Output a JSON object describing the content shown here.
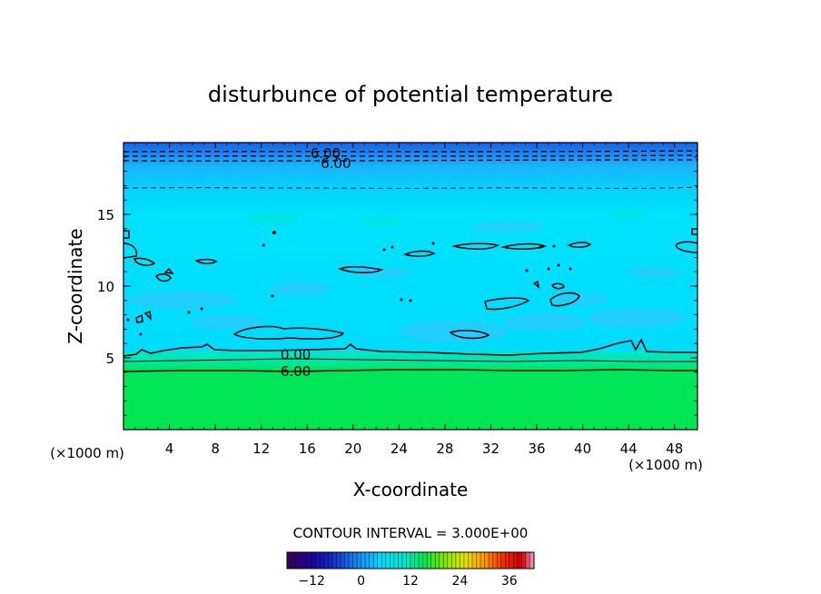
{
  "chart_data": {
    "type": "contour",
    "title": "disturbunce of potential temperature",
    "xlabel": "X-coordinate",
    "ylabel": "Z-coordinate",
    "x_unit": "(×1000 m)",
    "y_unit": "(×1000 m)",
    "xlim": [
      0,
      50
    ],
    "ylim": [
      0,
      20
    ],
    "x_ticks": [
      4,
      8,
      12,
      16,
      20,
      24,
      28,
      32,
      36,
      40,
      44,
      48
    ],
    "y_ticks": [
      5,
      10,
      15
    ],
    "contour_interval_label": "CONTOUR INTERVAL = 3.000E+00",
    "contour_labels": [
      {
        "text": "6.00",
        "x": 17.6,
        "z": 19.3
      },
      {
        "text": "6.00",
        "x": 18.5,
        "z": 18.6
      },
      {
        "text": "0.00",
        "x": 15.0,
        "z": 5.3
      },
      {
        "text": "6.00",
        "x": 15.0,
        "z": 4.1
      }
    ],
    "colorbar": {
      "ticks": [
        -12,
        0,
        12,
        24,
        36
      ],
      "min": -18,
      "max": 42
    },
    "colors": {
      "upper_band": "#1ea0ff",
      "top_band": "#1464e6",
      "main_field": "#00e6ff",
      "field_patch": "#3cc3ff",
      "lower_transition": "#00e6b4",
      "bottom_field": "#00e65a"
    }
  }
}
